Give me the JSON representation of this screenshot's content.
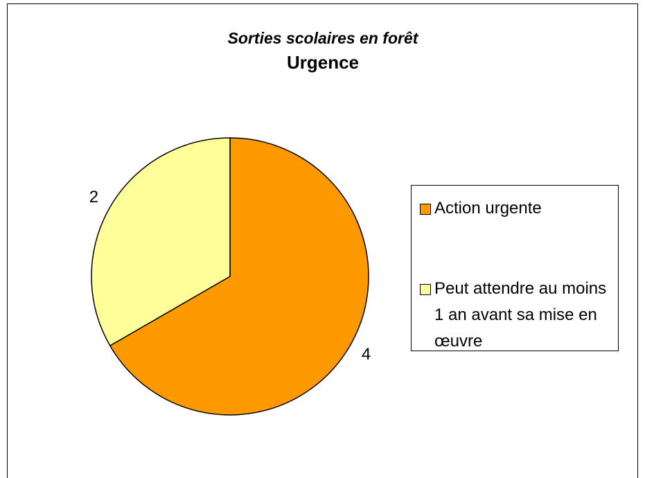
{
  "chart_data": {
    "type": "pie",
    "title": "Sorties scolaires en forêt",
    "subtitle": "Urgence",
    "categories": [
      "Action urgente",
      "Peut attendre au moins 1 an avant sa mise en œuvre"
    ],
    "values": [
      4,
      2
    ],
    "colors": [
      "#FF9900",
      "#FFFF99"
    ],
    "legend": "right"
  }
}
